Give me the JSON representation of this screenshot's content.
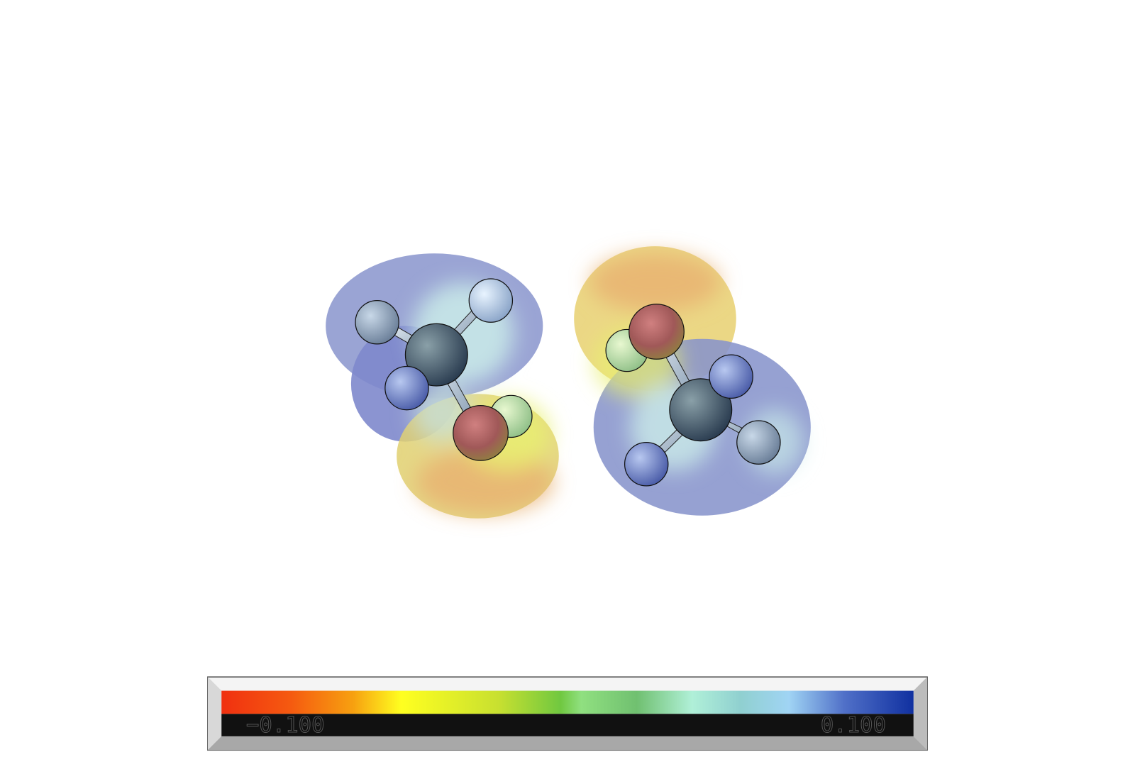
{
  "colorbar": {
    "min_label": "−0.100",
    "max_label": "0.100"
  }
}
